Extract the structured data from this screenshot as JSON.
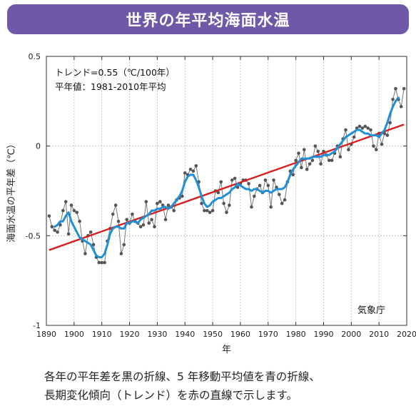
{
  "header": {
    "title": "世界の年平均海面水温"
  },
  "caption": {
    "line1": "各年の平年差を黒の折線、5 年移動平均値を青の折線、",
    "line2": "長期変化傾向（トレンド）を赤の直線で示します。"
  },
  "chart_data": {
    "type": "line",
    "title": "世界の年平均海面水温",
    "xlabel": "年",
    "ylabel": "海面水温の平年差（℃）",
    "xlim": [
      1890,
      2020
    ],
    "ylim": [
      -1,
      0.5
    ],
    "xticks": [
      1890,
      1900,
      1910,
      1920,
      1930,
      1940,
      1950,
      1960,
      1970,
      1980,
      1990,
      2000,
      2010,
      2020
    ],
    "yticks": [
      0.5,
      0,
      -0.5,
      -1
    ],
    "ytick_labels": [
      "0.5",
      "0",
      "-0.5",
      "-1"
    ],
    "grid": true,
    "annotations": {
      "trend": "トレンド=0.55（℃/100年）",
      "normal": "平年値：1981-2010年平均",
      "source": "気象庁"
    },
    "colors": {
      "annual": "#555555",
      "moving_avg": "#1f8fd6",
      "trend": "#d62020",
      "banner": "#6f58a8"
    },
    "series": [
      {
        "key": "annual",
        "x": [
          1891,
          1892,
          1893,
          1894,
          1895,
          1896,
          1897,
          1898,
          1899,
          1900,
          1901,
          1902,
          1903,
          1904,
          1905,
          1906,
          1907,
          1908,
          1909,
          1910,
          1911,
          1912,
          1913,
          1914,
          1915,
          1916,
          1917,
          1918,
          1919,
          1920,
          1921,
          1922,
          1923,
          1924,
          1925,
          1926,
          1927,
          1928,
          1929,
          1930,
          1931,
          1932,
          1933,
          1934,
          1935,
          1936,
          1937,
          1938,
          1939,
          1940,
          1941,
          1942,
          1943,
          1944,
          1945,
          1946,
          1947,
          1948,
          1949,
          1950,
          1951,
          1952,
          1953,
          1954,
          1955,
          1956,
          1957,
          1958,
          1959,
          1960,
          1961,
          1962,
          1963,
          1964,
          1965,
          1966,
          1967,
          1968,
          1969,
          1970,
          1971,
          1972,
          1973,
          1974,
          1975,
          1976,
          1977,
          1978,
          1979,
          1980,
          1981,
          1982,
          1983,
          1984,
          1985,
          1986,
          1987,
          1988,
          1989,
          1990,
          1991,
          1992,
          1993,
          1994,
          1995,
          1996,
          1997,
          1998,
          1999,
          2000,
          2001,
          2002,
          2003,
          2004,
          2005,
          2006,
          2007,
          2008,
          2009,
          2010,
          2011,
          2012,
          2013,
          2014,
          2015,
          2016,
          2017,
          2018,
          2019
        ],
        "y": [
          -0.39,
          -0.45,
          -0.47,
          -0.48,
          -0.44,
          -0.36,
          -0.31,
          -0.49,
          -0.33,
          -0.36,
          -0.37,
          -0.42,
          -0.53,
          -0.6,
          -0.5,
          -0.48,
          -0.55,
          -0.62,
          -0.65,
          -0.65,
          -0.65,
          -0.53,
          -0.46,
          -0.38,
          -0.33,
          -0.42,
          -0.6,
          -0.55,
          -0.41,
          -0.43,
          -0.38,
          -0.42,
          -0.43,
          -0.45,
          -0.44,
          -0.31,
          -0.43,
          -0.41,
          -0.45,
          -0.32,
          -0.31,
          -0.33,
          -0.41,
          -0.33,
          -0.34,
          -0.36,
          -0.3,
          -0.29,
          -0.28,
          -0.15,
          -0.16,
          -0.13,
          -0.14,
          -0.11,
          -0.2,
          -0.32,
          -0.36,
          -0.36,
          -0.37,
          -0.36,
          -0.25,
          -0.26,
          -0.2,
          -0.32,
          -0.37,
          -0.33,
          -0.19,
          -0.18,
          -0.23,
          -0.21,
          -0.19,
          -0.19,
          -0.21,
          -0.34,
          -0.28,
          -0.24,
          -0.22,
          -0.26,
          -0.19,
          -0.22,
          -0.34,
          -0.19,
          -0.23,
          -0.27,
          -0.32,
          -0.3,
          -0.2,
          -0.14,
          -0.16,
          -0.08,
          -0.04,
          -0.12,
          -0.02,
          -0.13,
          -0.1,
          -0.08,
          0.0,
          -0.03,
          -0.1,
          -0.03,
          -0.05,
          -0.08,
          -0.08,
          -0.04,
          0.0,
          -0.06,
          0.04,
          0.09,
          -0.02,
          0.01,
          0.05,
          0.1,
          0.11,
          0.1,
          0.11,
          0.1,
          0.09,
          0.0,
          -0.02,
          0.07,
          0.01,
          0.07,
          0.06,
          0.13,
          0.26,
          0.32,
          0.26,
          0.22,
          0.32
        ]
      },
      {
        "key": "moving_avg",
        "x": [
          1893,
          1894,
          1895,
          1896,
          1897,
          1898,
          1899,
          1900,
          1901,
          1902,
          1903,
          1904,
          1905,
          1906,
          1907,
          1908,
          1909,
          1910,
          1911,
          1912,
          1913,
          1914,
          1915,
          1916,
          1917,
          1918,
          1919,
          1920,
          1921,
          1922,
          1923,
          1924,
          1925,
          1926,
          1927,
          1928,
          1929,
          1930,
          1931,
          1932,
          1933,
          1934,
          1935,
          1936,
          1937,
          1938,
          1939,
          1940,
          1941,
          1942,
          1943,
          1944,
          1945,
          1946,
          1947,
          1948,
          1949,
          1950,
          1951,
          1952,
          1953,
          1954,
          1955,
          1956,
          1957,
          1958,
          1959,
          1960,
          1961,
          1962,
          1963,
          1964,
          1965,
          1966,
          1967,
          1968,
          1969,
          1970,
          1971,
          1972,
          1973,
          1974,
          1975,
          1976,
          1977,
          1978,
          1979,
          1980,
          1981,
          1982,
          1983,
          1984,
          1985,
          1986,
          1987,
          1988,
          1989,
          1990,
          1991,
          1992,
          1993,
          1994,
          1995,
          1996,
          1997,
          1998,
          1999,
          2000,
          2001,
          2002,
          2003,
          2004,
          2005,
          2006,
          2007,
          2008,
          2009,
          2010,
          2011,
          2012,
          2013,
          2014,
          2015,
          2016,
          2017
        ],
        "y": [
          -0.45,
          -0.44,
          -0.42,
          -0.42,
          -0.39,
          -0.37,
          -0.42,
          -0.45,
          -0.48,
          -0.51,
          -0.52,
          -0.53,
          -0.54,
          -0.55,
          -0.58,
          -0.61,
          -0.62,
          -0.62,
          -0.6,
          -0.55,
          -0.49,
          -0.46,
          -0.45,
          -0.45,
          -0.46,
          -0.46,
          -0.43,
          -0.43,
          -0.42,
          -0.42,
          -0.43,
          -0.41,
          -0.4,
          -0.39,
          -0.38,
          -0.36,
          -0.36,
          -0.35,
          -0.35,
          -0.34,
          -0.34,
          -0.35,
          -0.34,
          -0.32,
          -0.3,
          -0.28,
          -0.25,
          -0.2,
          -0.17,
          -0.16,
          -0.16,
          -0.19,
          -0.23,
          -0.28,
          -0.32,
          -0.34,
          -0.33,
          -0.31,
          -0.3,
          -0.29,
          -0.29,
          -0.28,
          -0.27,
          -0.26,
          -0.24,
          -0.23,
          -0.21,
          -0.22,
          -0.23,
          -0.24,
          -0.24,
          -0.25,
          -0.24,
          -0.24,
          -0.25,
          -0.26,
          -0.25,
          -0.25,
          -0.26,
          -0.25,
          -0.24,
          -0.24,
          -0.24,
          -0.23,
          -0.2,
          -0.16,
          -0.13,
          -0.11,
          -0.09,
          -0.07,
          -0.07,
          -0.07,
          -0.07,
          -0.06,
          -0.06,
          -0.06,
          -0.06,
          -0.05,
          -0.05,
          -0.05,
          -0.04,
          -0.03,
          -0.01,
          0.01,
          0.03,
          0.05,
          0.06,
          0.07,
          0.08,
          0.09,
          0.09,
          0.08,
          0.07,
          0.07,
          0.06,
          0.06,
          0.06,
          0.05,
          0.07,
          0.09,
          0.13,
          0.18,
          0.22,
          0.25,
          0.27
        ]
      },
      {
        "key": "trend",
        "x": [
          1891,
          2019
        ],
        "y": [
          -0.58,
          0.12
        ]
      }
    ]
  }
}
